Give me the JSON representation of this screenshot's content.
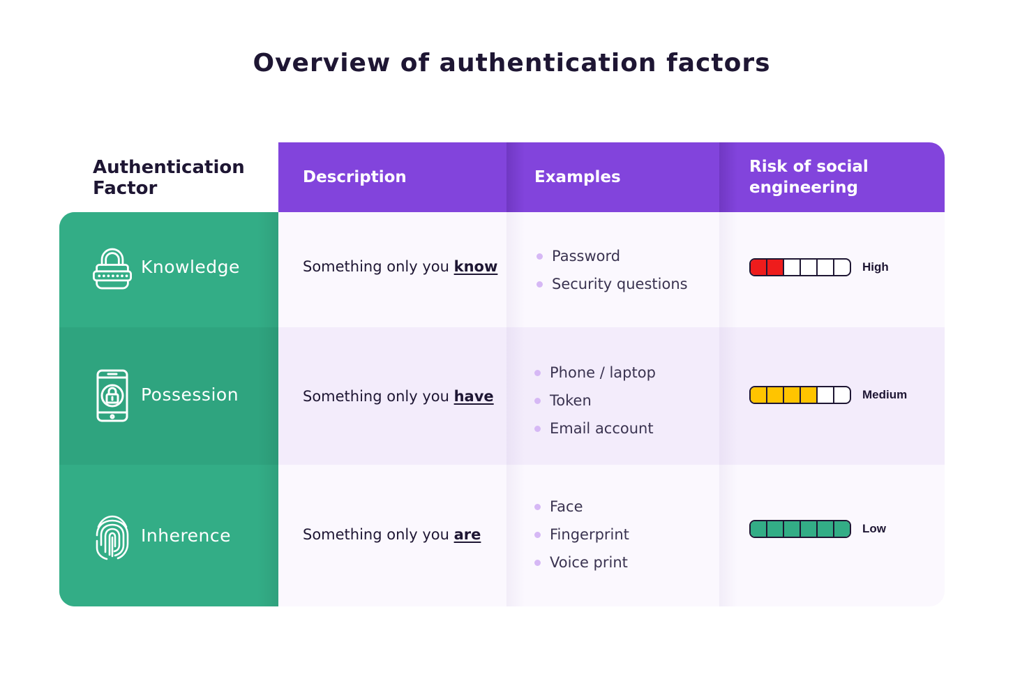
{
  "title": "Overview of authentication factors",
  "columns": {
    "factor": "Authentication Factor",
    "description": "Description",
    "examples": "Examples",
    "risk": "Risk of social engineering"
  },
  "colors": {
    "header": "#8244dc",
    "factor_bg": "#33ad86",
    "factor_bg_alt": "#2fa47f",
    "row_light": "#fbf8fe",
    "row_alt": "#f3ecfb",
    "risk_high": "#ee1c1c",
    "risk_medium": "#ffc400",
    "risk_low": "#33ad86"
  },
  "rows": [
    {
      "factor": "Knowledge",
      "icon": "padlock-password-icon",
      "description_prefix": "Something only you ",
      "description_emphasis": "know",
      "examples": [
        "Password",
        "Security questions"
      ],
      "risk": {
        "label": "High",
        "level": 2,
        "total": 6,
        "color": "#ee1c1c"
      }
    },
    {
      "factor": "Possession",
      "icon": "smartphone-lock-icon",
      "description_prefix": "Something only you ",
      "description_emphasis": "have",
      "examples": [
        "Phone / laptop",
        "Token",
        "Email account"
      ],
      "risk": {
        "label": "Medium",
        "level": 4,
        "total": 6,
        "color": "#ffc400"
      }
    },
    {
      "factor": "Inherence",
      "icon": "fingerprint-icon",
      "description_prefix": "Something only you ",
      "description_emphasis": "are",
      "examples": [
        "Face",
        "Fingerprint",
        "Voice print"
      ],
      "risk": {
        "label": "Low",
        "level": 6,
        "total": 6,
        "color": "#33ad86"
      }
    }
  ]
}
